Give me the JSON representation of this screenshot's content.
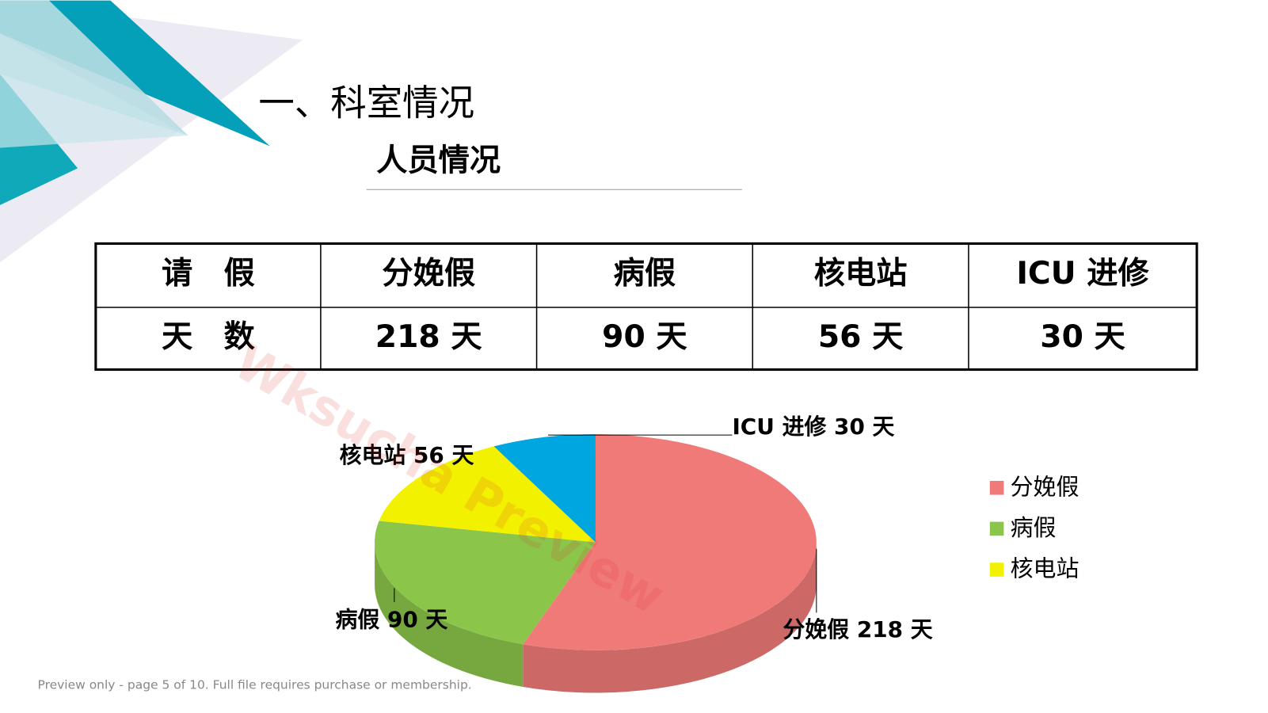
{
  "header": {
    "title": "一、科室情况",
    "subtitle": "人员情况"
  },
  "table": {
    "rows": [
      [
        "请　假",
        "分娩假",
        "病假",
        "核电站",
        "ICU 进修"
      ],
      [
        "天　数",
        "218 天",
        "90 天",
        "56 天",
        "30 天"
      ]
    ]
  },
  "chart_data": {
    "type": "pie",
    "categories": [
      "分娩假",
      "病假",
      "核电站",
      "ICU 进修"
    ],
    "values": [
      218,
      90,
      56,
      30
    ],
    "value_labels": [
      "分娩假 218 天",
      "病假 90 天",
      "核电站 56 天",
      "ICU 进修 30 天"
    ],
    "colors": [
      "#f07a78",
      "#8bc64a",
      "#f2f200",
      "#00a6e0"
    ],
    "legend": "right"
  },
  "watermark": "Wksucha Preview",
  "footer": "Preview only - page 5 of 10. Full file requires purchase or membership."
}
